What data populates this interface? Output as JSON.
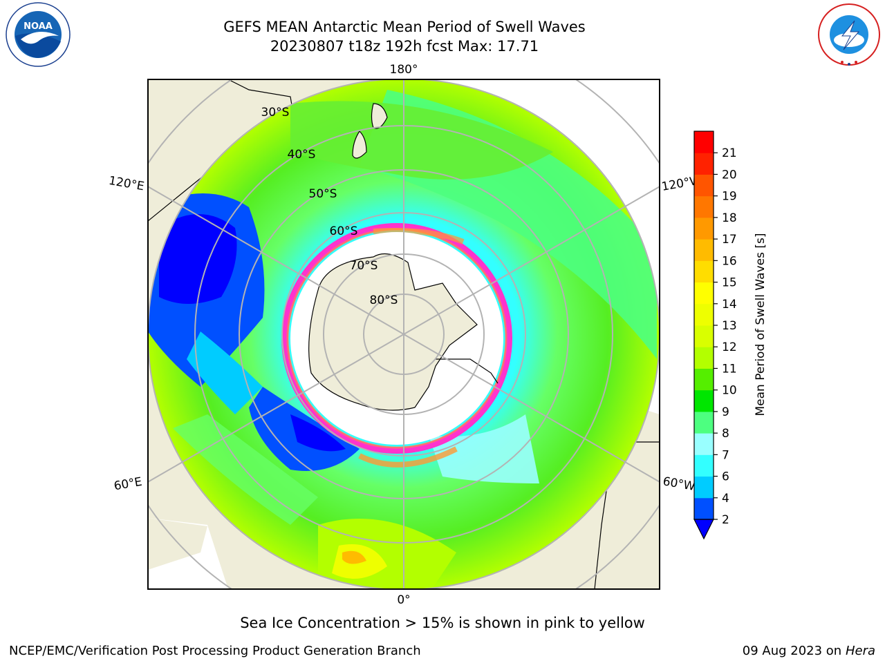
{
  "title": {
    "line1": "GEFS MEAN Antarctic Mean Period of Swell Waves",
    "line2": "20230807 t18z 192h fcst   Max: 17.71"
  },
  "logos": {
    "left": {
      "icon": "noaa-logo",
      "text": "NOAA",
      "ring_text": "NATIONAL OCEANIC AND ATMOSPHERIC ADMINISTRATION · U.S. DEPARTMENT OF COMMERCE"
    },
    "right": {
      "icon": "nws-logo",
      "ring_text": "NATIONAL WEATHER SERVICE"
    }
  },
  "map": {
    "projection": "south-polar-stereographic",
    "longitude_labels": {
      "top": "180°",
      "bottom": "0°",
      "upper_left": "120°E",
      "lower_left": "60°E",
      "upper_right": "120°W",
      "lower_right": "60°W"
    },
    "latitude_labels": [
      "30°S",
      "40°S",
      "50°S",
      "60°S",
      "70°S",
      "80°S"
    ],
    "land_color": "#efedd9",
    "grid_color": "#b3b3b3",
    "ice_colors": [
      "#ff33cc",
      "#ff9933",
      "#ffff66"
    ]
  },
  "colorbar": {
    "label": "Mean Period of Swell Waves [s]",
    "tick_labels": [
      "2",
      "4",
      "6",
      "7",
      "8",
      "9",
      "10",
      "11",
      "12",
      "13",
      "14",
      "15",
      "16",
      "17",
      "18",
      "19",
      "20",
      "21"
    ],
    "colors": [
      "#0050ff",
      "#00ccff",
      "#33ffff",
      "#99ffff",
      "#4dff80",
      "#00e600",
      "#55ee00",
      "#b3ff00",
      "#d9ff00",
      "#eeff00",
      "#ffff00",
      "#ffdd00",
      "#ffbb00",
      "#ff9900",
      "#ff7700",
      "#ff5500",
      "#ff2200",
      "#ff0000"
    ],
    "under_color": "#0000ff",
    "extend": "min"
  },
  "caption": "Sea Ice Concentration > 15% is shown in pink to yellow",
  "footer": {
    "left": "NCEP/EMC/Verification Post Processing Product Generation Branch",
    "right_date": "09 Aug 2023 on",
    "right_host": "Hera"
  }
}
